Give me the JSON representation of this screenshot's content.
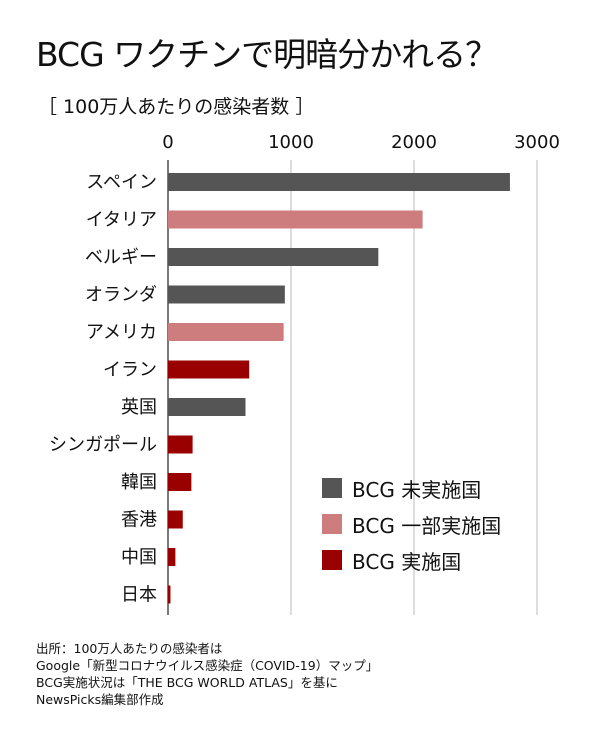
{
  "title": "BCG ワクチンで明暗分かれる？",
  "subtitle": "［ 100万人あたりの感染者数 ］",
  "chart_data": {
    "type": "bar",
    "orientation": "horizontal",
    "title": "BCG ワクチンで明暗分かれる？",
    "subtitle": "100万人あたりの感染者数",
    "xlim": [
      0,
      3000
    ],
    "ticks": [
      "0",
      "1000",
      "2000",
      "3000"
    ],
    "grid": true,
    "legend_position": "bottom-right",
    "categories": [
      "スペイン",
      "イタリア",
      "ベルギー",
      "オランダ",
      "アメリカ",
      "イラン",
      "英国",
      "シンガポール",
      "韓国",
      "香港",
      "中国",
      "日本"
    ],
    "values": [
      2780,
      2070,
      1710,
      950,
      940,
      660,
      630,
      200,
      190,
      120,
      60,
      20
    ],
    "groups": [
      "none",
      "partial",
      "none",
      "none",
      "partial",
      "full",
      "none",
      "full",
      "full",
      "full",
      "full",
      "full"
    ],
    "legend": [
      {
        "key": "none",
        "label": "BCG 未実施国",
        "color": "#555555"
      },
      {
        "key": "partial",
        "label": "BCG 一部実施国",
        "color": "#cd7d7d"
      },
      {
        "key": "full",
        "label": "BCG 実施国",
        "color": "#990000"
      }
    ]
  },
  "source": [
    "出所：100万人あたりの感染者は",
    "Google「新型コロナウイルス感染症（COVID-19）マップ」",
    "BCG実施状況は「THE BCG WORLD ATLAS」を基に",
    "NewsPicks編集部作成"
  ]
}
